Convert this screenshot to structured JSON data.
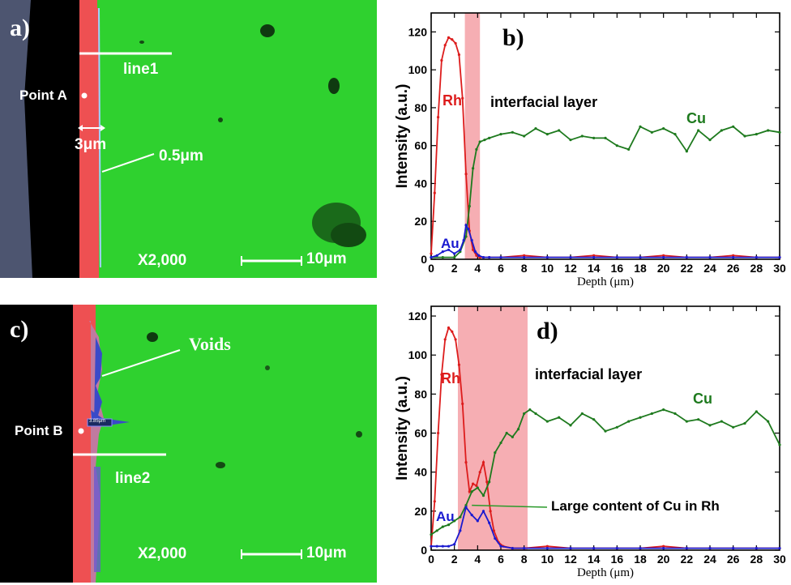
{
  "panels": {
    "a": {
      "letter": "a)",
      "line_label": "line1",
      "point_label": "Point A",
      "width_label": "3μm",
      "interface_label": "0.5μm",
      "mag": "X2,000",
      "scale": "10μm"
    },
    "c": {
      "letter": "c)",
      "voids_label": "Voids",
      "point_label": "Point B",
      "line_label": "line2",
      "mag": "X2,000",
      "scale": "10μm",
      "measure_tag": "3.85μm"
    }
  },
  "colors": {
    "rh": "#dd1c1c",
    "cu": "#1e7a1e",
    "au": "#1a1ad0",
    "band": "#f4a0a6",
    "sem_green": "#2fd12f",
    "sem_red": "#ee5052"
  },
  "chart_data": [
    {
      "type": "line",
      "panel": "b)",
      "xlabel": "Depth (μm)",
      "ylabel": "Intensity (a.u.)",
      "xlim": [
        0,
        30
      ],
      "ylim": [
        0,
        130
      ],
      "xticks": [
        0,
        2,
        4,
        6,
        8,
        10,
        12,
        14,
        16,
        18,
        20,
        22,
        24,
        26,
        28,
        30
      ],
      "yticks": [
        0,
        20,
        40,
        60,
        80,
        100,
        120
      ],
      "band": {
        "label": "interfacial layer",
        "x": [
          2.9,
          4.2
        ]
      },
      "series": [
        {
          "name": "Rh",
          "color": "#dd1c1c",
          "x": [
            0,
            0.3,
            0.6,
            0.9,
            1.2,
            1.5,
            1.8,
            2.1,
            2.4,
            2.7,
            3.0,
            3.3,
            3.6,
            3.9,
            4.2,
            4.5,
            5,
            6,
            8,
            10,
            12,
            14,
            16,
            18,
            20,
            22,
            24,
            26,
            28,
            30
          ],
          "y": [
            3,
            35,
            75,
            105,
            113,
            117,
            116,
            114,
            108,
            85,
            45,
            15,
            5,
            2,
            1,
            1,
            1,
            1,
            2,
            1,
            1,
            2,
            1,
            1,
            2,
            1,
            1,
            2,
            1,
            1
          ]
        },
        {
          "name": "Cu",
          "color": "#1e7a1e",
          "x": [
            0,
            1,
            2,
            2.5,
            3,
            3.3,
            3.6,
            3.9,
            4.2,
            4.6,
            5,
            6,
            7,
            8,
            9,
            10,
            11,
            12,
            13,
            14,
            15,
            16,
            17,
            18,
            19,
            20,
            21,
            22,
            23,
            24,
            25,
            26,
            27,
            28,
            29,
            30
          ],
          "y": [
            1,
            1,
            1,
            4,
            12,
            28,
            48,
            58,
            62,
            63,
            64,
            66,
            67,
            65,
            69,
            66,
            68,
            63,
            65,
            64,
            64,
            60,
            58,
            70,
            67,
            69,
            66,
            57,
            68,
            63,
            68,
            70,
            65,
            66,
            68,
            67
          ]
        },
        {
          "name": "Au",
          "color": "#1a1ad0",
          "x": [
            0,
            0.5,
            1,
            1.5,
            2,
            2.5,
            2.8,
            3.0,
            3.2,
            3.5,
            3.8,
            4.1,
            4.5,
            5,
            6,
            8,
            10,
            12,
            14,
            16,
            18,
            20,
            22,
            24,
            26,
            28,
            30
          ],
          "y": [
            1,
            2,
            4,
            5,
            3,
            5,
            10,
            18,
            16,
            10,
            4,
            2,
            1,
            1,
            1,
            1,
            1,
            1,
            1,
            1,
            1,
            1,
            1,
            1,
            1,
            1,
            1
          ]
        }
      ]
    },
    {
      "type": "line",
      "panel": "d)",
      "xlabel": "Depth (μm)",
      "ylabel": "Intensity (a.u.)",
      "xlim": [
        0,
        30
      ],
      "ylim": [
        0,
        125
      ],
      "xticks": [
        0,
        2,
        4,
        6,
        8,
        10,
        12,
        14,
        16,
        18,
        20,
        22,
        24,
        26,
        28,
        30
      ],
      "yticks": [
        0,
        20,
        40,
        60,
        80,
        100,
        120
      ],
      "band": {
        "label": "interfacial layer",
        "x": [
          2.3,
          8.3
        ]
      },
      "annotation": {
        "text": "Large content of Cu in Rh",
        "x": 3.5,
        "y": 23
      },
      "series": [
        {
          "name": "Rh",
          "color": "#dd1c1c",
          "x": [
            0,
            0.3,
            0.6,
            0.9,
            1.2,
            1.5,
            1.8,
            2.1,
            2.4,
            2.7,
            3.0,
            3.3,
            3.6,
            3.9,
            4.2,
            4.5,
            4.8,
            5.1,
            5.4,
            5.8,
            6.2,
            7,
            8,
            10,
            12,
            14,
            16,
            18,
            20,
            22,
            24,
            26,
            28,
            30
          ],
          "y": [
            2,
            25,
            60,
            90,
            108,
            114,
            112,
            108,
            95,
            75,
            45,
            30,
            34,
            33,
            40,
            45,
            35,
            20,
            10,
            4,
            2,
            1,
            1,
            2,
            1,
            1,
            1,
            1,
            2,
            1,
            1,
            1,
            1,
            1
          ]
        },
        {
          "name": "Cu",
          "color": "#1e7a1e",
          "x": [
            0,
            0.5,
            1,
            1.5,
            2,
            2.5,
            3,
            3.5,
            4,
            4.5,
            5,
            5.5,
            6,
            6.5,
            7,
            7.5,
            8,
            8.5,
            9,
            10,
            11,
            12,
            13,
            14,
            15,
            16,
            17,
            18,
            19,
            20,
            21,
            22,
            23,
            24,
            25,
            26,
            27,
            28,
            29,
            30
          ],
          "y": [
            8,
            10,
            12,
            13,
            15,
            17,
            23,
            30,
            32,
            28,
            35,
            50,
            55,
            60,
            58,
            62,
            70,
            72,
            70,
            66,
            68,
            64,
            70,
            67,
            61,
            63,
            66,
            68,
            70,
            72,
            70,
            66,
            67,
            64,
            66,
            63,
            65,
            71,
            66,
            54
          ]
        },
        {
          "name": "Au",
          "color": "#1a1ad0",
          "x": [
            0,
            0.5,
            1,
            1.5,
            2,
            2.5,
            3,
            3.5,
            4,
            4.5,
            5,
            5.5,
            6,
            7,
            8,
            10,
            12,
            14,
            16,
            18,
            20,
            22,
            24,
            26,
            28,
            30
          ],
          "y": [
            2,
            2,
            2,
            2,
            3,
            10,
            22,
            18,
            15,
            20,
            14,
            6,
            2,
            1,
            1,
            1,
            1,
            1,
            1,
            1,
            1,
            1,
            1,
            1,
            1,
            1
          ]
        }
      ]
    }
  ]
}
